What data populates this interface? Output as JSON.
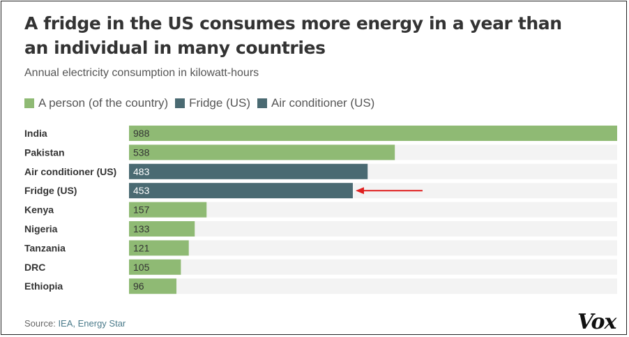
{
  "title": "A fridge in the US consumes more energy in a year than an individual in many countries",
  "subtitle": "Annual electricity consumption in kilowatt-hours",
  "legend": [
    {
      "label": "A person (of the country)",
      "color": "#8fba74"
    },
    {
      "label": "Fridge (US)",
      "color": "#4a6a72"
    },
    {
      "label": "Air conditioner (US)",
      "color": "#4a6a72"
    }
  ],
  "source": {
    "prefix": "Source:",
    "links": "IEA, Energy Star"
  },
  "brand": "Vox",
  "colors": {
    "person": "#8fba74",
    "appliance": "#4a6a72",
    "track": "#f3f3f3",
    "arrow": "#e02020"
  },
  "chart_data": {
    "type": "bar",
    "orientation": "horizontal",
    "title": "A fridge in the US consumes more energy in a year than an individual in many countries",
    "xlabel": "Annual electricity consumption in kilowatt-hours",
    "xlim": [
      0,
      988
    ],
    "categories": [
      "India",
      "Pakistan",
      "Air conditioner (US)",
      "Fridge (US)",
      "Kenya",
      "Nigeria",
      "Tanzania",
      "DRC",
      "Ethiopia"
    ],
    "values": [
      988,
      538,
      483,
      453,
      157,
      133,
      121,
      105,
      96
    ],
    "groups": [
      "person",
      "person",
      "appliance",
      "appliance",
      "person",
      "person",
      "person",
      "person",
      "person"
    ],
    "annotation": {
      "type": "arrow",
      "target": "Fridge (US)"
    }
  }
}
